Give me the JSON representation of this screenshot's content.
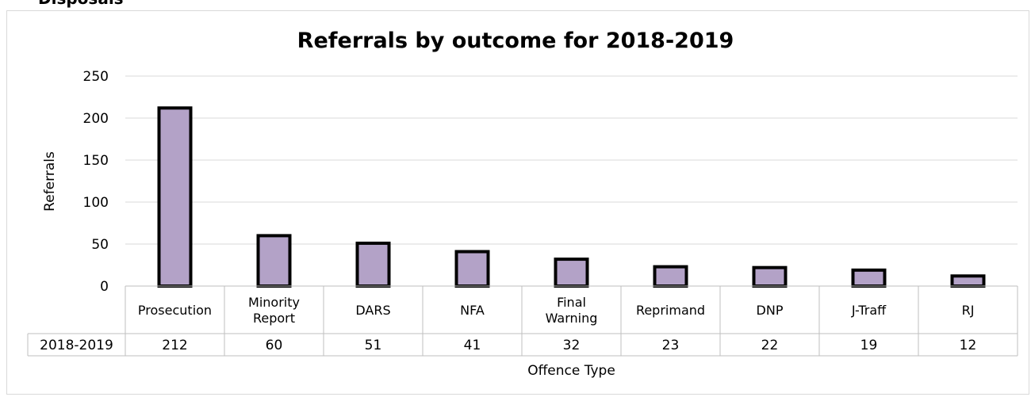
{
  "section_heading": "Disposals",
  "chart_data": {
    "type": "bar",
    "title": "Referrals by outcome for 2018-2019",
    "xlabel": "Offence Type",
    "ylabel": "Referrals",
    "ylim": [
      0,
      250
    ],
    "yticks": [
      0,
      50,
      100,
      150,
      200,
      250
    ],
    "categories": [
      [
        "Prosecution"
      ],
      [
        "Minority",
        "Report"
      ],
      [
        "DARS"
      ],
      [
        "NFA"
      ],
      [
        "Final",
        "Warning"
      ],
      [
        "Reprimand"
      ],
      [
        "DNP"
      ],
      [
        "J-Traff"
      ],
      [
        "RJ"
      ]
    ],
    "series": [
      {
        "name": "2018-2019",
        "values": [
          212,
          60,
          51,
          41,
          32,
          23,
          22,
          19,
          12
        ]
      }
    ],
    "bar_color": "#b3a2c7",
    "bar_border": "#000000",
    "grid": true,
    "legend": "data-table"
  }
}
